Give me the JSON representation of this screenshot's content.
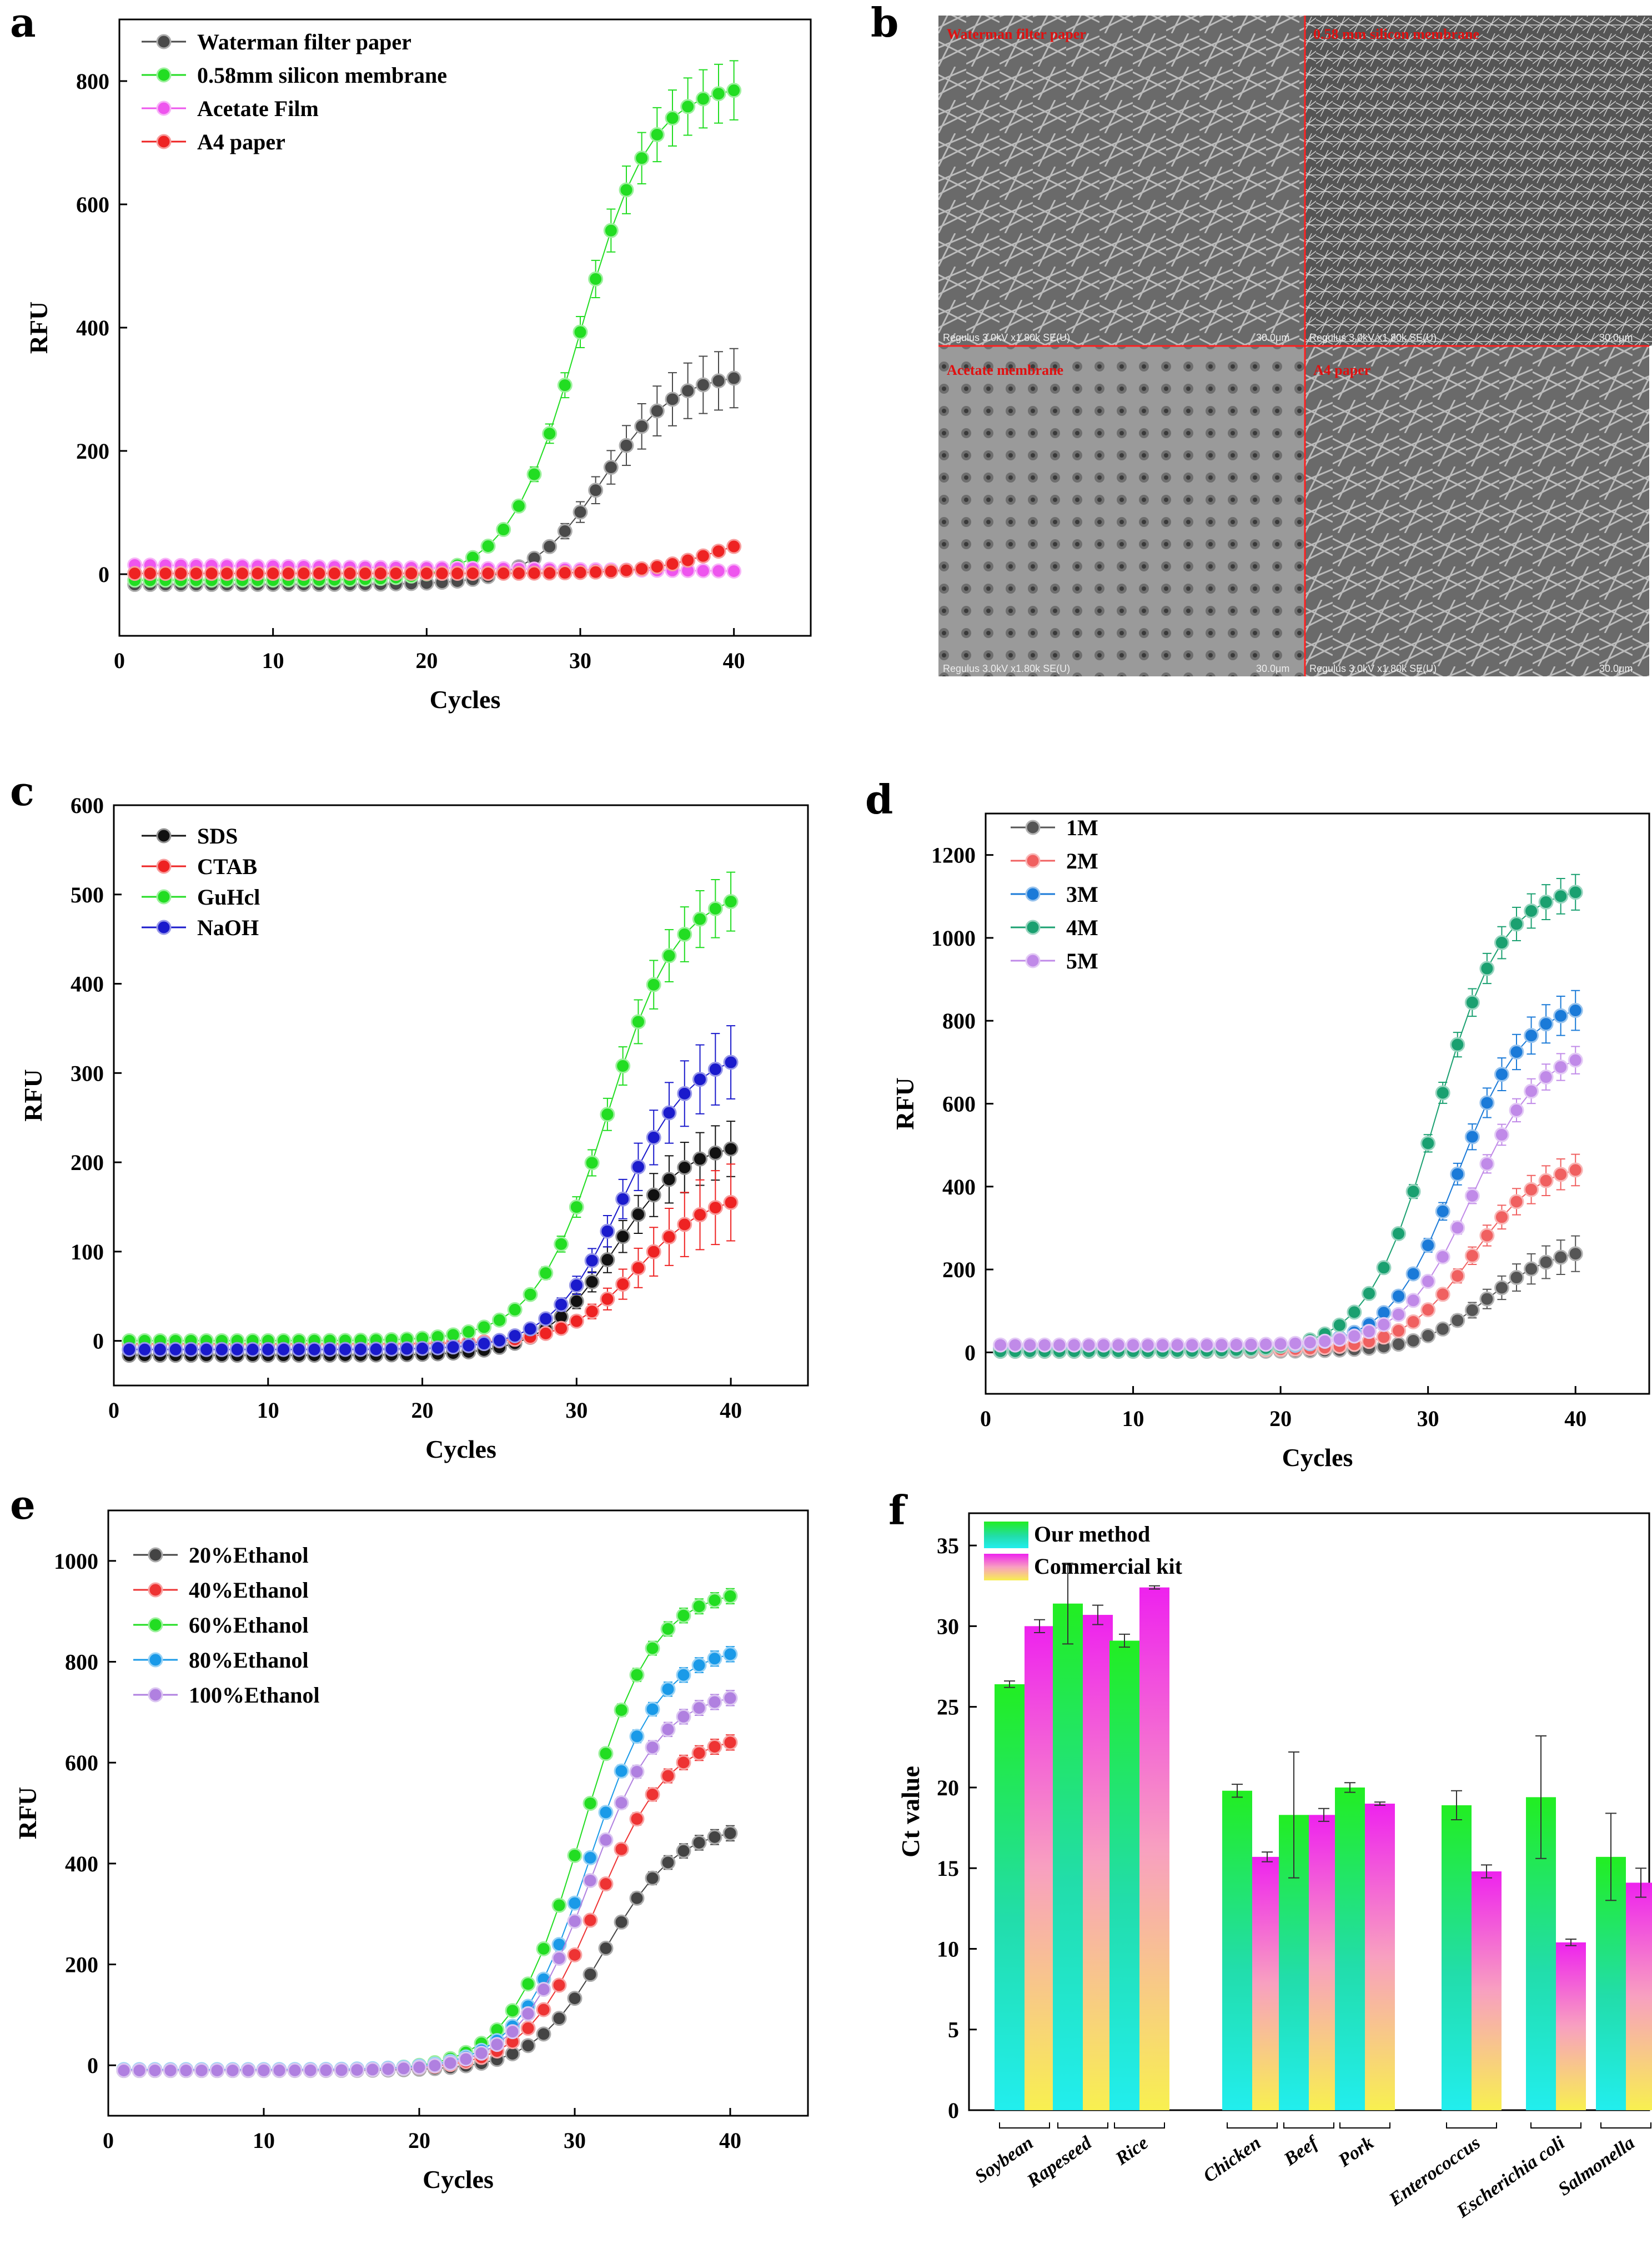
{
  "panels": {
    "a": "a",
    "b": "b",
    "c": "c",
    "d": "d",
    "e": "e",
    "f": "f"
  },
  "chart_data": [
    {
      "id": "a",
      "type": "line",
      "xlabel": "Cycles",
      "ylabel": "RFU",
      "xlim": [
        0,
        45
      ],
      "ylim": [
        -100,
        900
      ],
      "xticks": [
        0,
        10,
        20,
        30,
        40
      ],
      "yticks": [
        0,
        200,
        400,
        600,
        800
      ],
      "legend_position": "top-left",
      "series": [
        {
          "name": "Waterman filter paper",
          "color": "#4a4a4a",
          "x_start": 1,
          "y_start": 5,
          "y_end": 318,
          "ct": 26.5,
          "err_max": 45
        },
        {
          "name": "0.58mm silicon membrane",
          "color": "#22dd22",
          "x_start": 1,
          "y_start": 10,
          "y_end": 785,
          "ct": 25.0,
          "err_max": 45
        },
        {
          "name": "Acetate Film",
          "color": "#ee55ee",
          "x_start": 1,
          "y_start": 15,
          "y_end": 5,
          "ct": null,
          "err_max": 5
        },
        {
          "name": "A4 paper",
          "color": "#ee2222",
          "x_start": 1,
          "y_start": 3,
          "y_end": 45,
          "ct": 34.0,
          "err_max": 6
        }
      ]
    },
    {
      "id": "c",
      "type": "line",
      "xlabel": "Cycles",
      "ylabel": "RFU",
      "xlim": [
        0,
        45
      ],
      "ylim": [
        -50,
        600
      ],
      "xticks": [
        0,
        10,
        20,
        30,
        40
      ],
      "yticks": [
        0,
        100,
        200,
        300,
        400,
        500,
        600
      ],
      "legend_position": "top-left",
      "series": [
        {
          "name": "SDS",
          "color": "#111111",
          "x_start": 1,
          "y_start": 5,
          "y_end": 215,
          "ct": 27.5,
          "err_max": 28
        },
        {
          "name": "CTAB",
          "color": "#ee2222",
          "x_start": 1,
          "y_start": 15,
          "y_end": 155,
          "ct": 29.0,
          "err_max": 40
        },
        {
          "name": "GuHcl",
          "color": "#22dd22",
          "x_start": 1,
          "y_start": 15,
          "y_end": 492,
          "ct": 27.0,
          "err_max": 30
        },
        {
          "name": "NaOH",
          "color": "#1a1acc",
          "x_start": 1,
          "y_start": 5,
          "y_end": 312,
          "ct": 28.0,
          "err_max": 38
        }
      ]
    },
    {
      "id": "d",
      "type": "line",
      "xlabel": "Cycles",
      "ylabel": "RFU",
      "xlim": [
        0,
        45
      ],
      "ylim": [
        -100,
        1300
      ],
      "xticks": [
        0,
        10,
        20,
        30,
        40
      ],
      "yticks": [
        0,
        200,
        400,
        600,
        800,
        1000,
        1200
      ],
      "legend_position": "top-left",
      "series": [
        {
          "name": "1M",
          "color": "#555555",
          "x_start": 1,
          "y_start": 15,
          "y_end": 238,
          "ct": 29.0,
          "err_max": 40
        },
        {
          "name": "2M",
          "color": "#f06060",
          "x_start": 1,
          "y_start": 15,
          "y_end": 440,
          "ct": 28.0,
          "err_max": 35
        },
        {
          "name": "3M",
          "color": "#1a7ad8",
          "x_start": 1,
          "y_start": 15,
          "y_end": 825,
          "ct": 27.0,
          "err_max": 45
        },
        {
          "name": "4M",
          "color": "#1aa070",
          "x_start": 1,
          "y_start": 15,
          "y_end": 1110,
          "ct": 25.5,
          "err_max": 40
        },
        {
          "name": "5M",
          "color": "#c08ae8",
          "x_start": 1,
          "y_start": 15,
          "y_end": 705,
          "ct": 28.0,
          "err_max": 30
        }
      ]
    },
    {
      "id": "e",
      "type": "line",
      "xlabel": "Cycles",
      "ylabel": "RFU",
      "xlim": [
        0,
        45
      ],
      "ylim": [
        -100,
        1100
      ],
      "xticks": [
        0,
        10,
        20,
        30,
        40
      ],
      "yticks": [
        0,
        200,
        400,
        600,
        800,
        1000
      ],
      "legend_position": "top-left",
      "series": [
        {
          "name": "20%Ethanol",
          "color": "#444444",
          "x_start": 1,
          "y_start": 5,
          "y_end": 460,
          "ct": 27.0,
          "err_max": 12
        },
        {
          "name": "40%Ethanol",
          "color": "#ee3333",
          "x_start": 1,
          "y_start": 5,
          "y_end": 640,
          "ct": 26.5,
          "err_max": 12
        },
        {
          "name": "60%Ethanol",
          "color": "#22dd22",
          "x_start": 1,
          "y_start": 5,
          "y_end": 930,
          "ct": 25.5,
          "err_max": 12
        },
        {
          "name": "80%Ethanol",
          "color": "#1a9ae8",
          "x_start": 1,
          "y_start": 5,
          "y_end": 815,
          "ct": 26.0,
          "err_max": 12
        },
        {
          "name": "100%Ethanol",
          "color": "#b080e0",
          "x_start": 1,
          "y_start": 5,
          "y_end": 728,
          "ct": 26.0,
          "err_max": 12
        }
      ]
    },
    {
      "id": "f",
      "type": "bar",
      "ylabel": "Ct value",
      "ylim": [
        0,
        37
      ],
      "yticks": [
        0,
        5,
        10,
        15,
        20,
        25,
        30,
        35
      ],
      "legend_position": "top-left",
      "categories": [
        "Soybean",
        "Rapeseed",
        "Rice",
        "Chicken",
        "Beef",
        "Pork",
        "Enterococcus",
        "Escherichia coli",
        "Salmonella"
      ],
      "series": [
        {
          "name": "Our method",
          "values": [
            26.4,
            31.4,
            29.1,
            19.8,
            18.3,
            20.0,
            18.9,
            19.4,
            15.7
          ],
          "errors": [
            0.2,
            2.5,
            0.4,
            0.4,
            3.9,
            0.3,
            0.9,
            3.8,
            2.7
          ]
        },
        {
          "name": "Commercial kit",
          "values": [
            30.0,
            30.7,
            32.4,
            15.7,
            18.3,
            19.0,
            14.8,
            10.4,
            14.1
          ],
          "errors": [
            0.4,
            0.6,
            0.1,
            0.3,
            0.4,
            0.1,
            0.4,
            0.2,
            0.9
          ]
        }
      ]
    }
  ],
  "sem": {
    "quadrants": [
      "Waterman filter paper",
      "0.58 mm silicon membrane",
      "Acetate membrane",
      "A4 paper"
    ],
    "scale_labels": [
      "Regulus 3.0kV x1.80k SE(U)",
      "30.0μm"
    ]
  }
}
